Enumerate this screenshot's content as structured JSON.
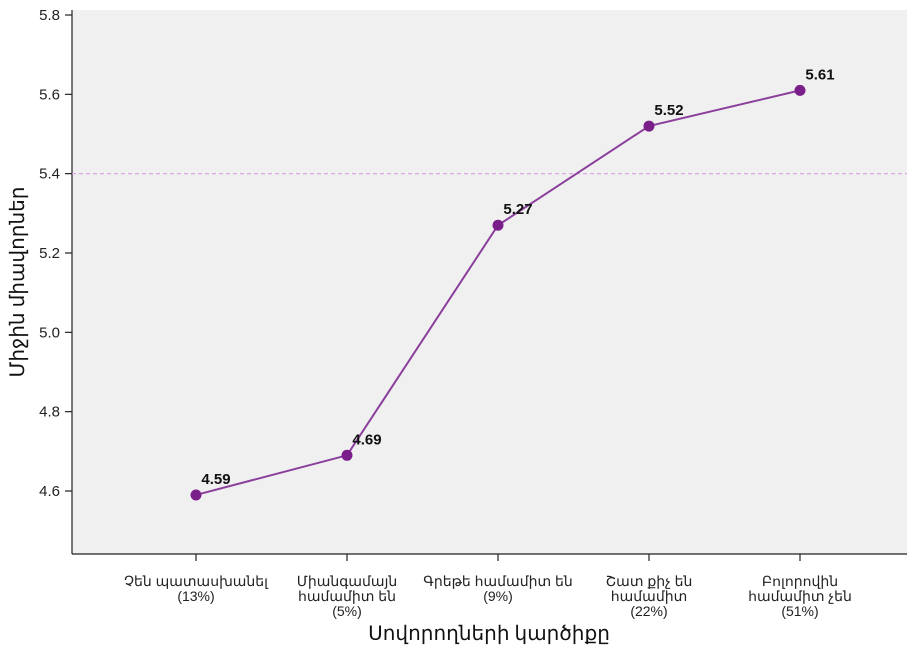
{
  "chart_data": {
    "type": "line",
    "title": "",
    "xlabel": "Սովորողների կարծիքը",
    "ylabel": "Միջին միավորներ",
    "ylim": [
      4.45,
      5.8
    ],
    "yticks": [
      4.6,
      4.8,
      5.0,
      5.2,
      5.4,
      5.6,
      5.8
    ],
    "ytick_labels": [
      "4.6",
      "4.8",
      "5.0",
      "5.2",
      "5.4",
      "5.6",
      "5.8"
    ],
    "reference_line": 5.4,
    "categories": [
      [
        "Չեն պատասխանել",
        "(13%)"
      ],
      [
        "Միանգամայն",
        "համամիտ են",
        "(5%)"
      ],
      [
        "Գրեթե համամիտ են",
        "(9%)"
      ],
      [
        "Շատ քիչ են",
        "համամիտ",
        "(22%)"
      ],
      [
        "Բոլորովին",
        "համամիտ չեն",
        "(51%)"
      ]
    ],
    "values": [
      4.59,
      4.69,
      5.27,
      5.52,
      5.61
    ],
    "value_labels": [
      "4.59",
      "4.69",
      "5.27",
      "5.52",
      "5.61"
    ],
    "colors": {
      "line": "#8b3f9c",
      "marker": "#7a1f8a",
      "reference": "#d9a0e0",
      "plot_bg": "#f0f0f0"
    },
    "grid": false,
    "legend": "none"
  }
}
